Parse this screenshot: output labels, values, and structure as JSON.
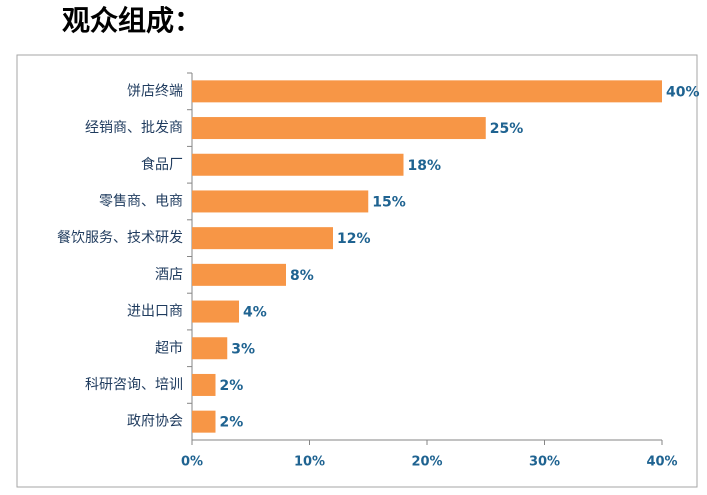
{
  "chart_data": {
    "type": "bar",
    "orientation": "horizontal",
    "title": "观众组成：",
    "categories": [
      "饼店终端",
      "经销商、批发商",
      "食品厂",
      "零售商、电商",
      "餐饮服务、技术研发",
      "酒店",
      "进出口商",
      "超市",
      "科研咨询、培训",
      "政府协会"
    ],
    "values": [
      40,
      25,
      18,
      15,
      12,
      8,
      4,
      3,
      2,
      2
    ],
    "value_labels": [
      "40%",
      "25%",
      "18%",
      "15%",
      "12%",
      "8%",
      "4%",
      "3%",
      "2%",
      "2%"
    ],
    "color": "#f79646",
    "xlim": [
      0,
      40
    ],
    "xticks": [
      {
        "value": 0,
        "label": "0%"
      },
      {
        "value": 10,
        "label": "10%"
      },
      {
        "value": 20,
        "label": "20%"
      },
      {
        "value": 30,
        "label": "30%"
      },
      {
        "value": 40,
        "label": "40%"
      }
    ],
    "grid": false
  }
}
